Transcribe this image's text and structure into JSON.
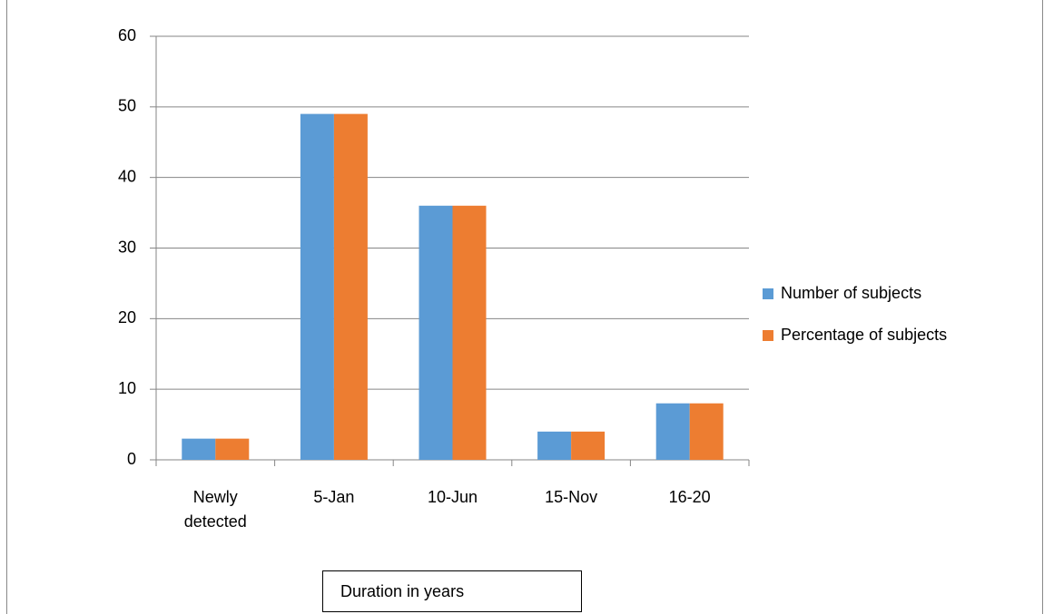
{
  "chart_data": {
    "type": "bar",
    "categories": [
      "Newly detected",
      "5-Jan",
      "10-Jun",
      "15-Nov",
      "16-20"
    ],
    "series": [
      {
        "name": "Number of subjects",
        "color": "#5b9bd5",
        "values": [
          3,
          49,
          36,
          4,
          8
        ]
      },
      {
        "name": "Percentage of subjects",
        "color": "#ed7d31",
        "values": [
          3,
          49,
          36,
          4,
          8
        ]
      }
    ],
    "xlabel": "Duration in years",
    "ylim": [
      0,
      60
    ],
    "yticks": [
      0,
      10,
      20,
      30,
      40,
      50,
      60
    ],
    "grid": true,
    "legend": "right"
  }
}
